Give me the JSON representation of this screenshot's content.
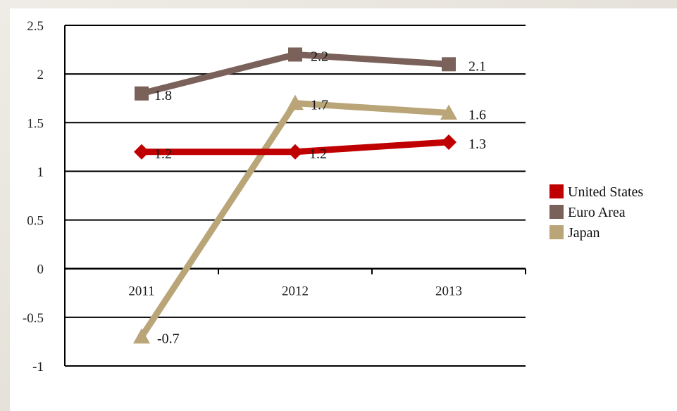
{
  "chart_data": {
    "type": "line",
    "categories": [
      "2011",
      "2012",
      "2013"
    ],
    "ylim": [
      -1,
      2.5
    ],
    "yticks": [
      "2.5",
      "2",
      "1.5",
      "1",
      "0.5",
      "0",
      "-0.5",
      "-1"
    ],
    "ytick_values": [
      2.5,
      2,
      1.5,
      1,
      0.5,
      0,
      -0.5,
      -1
    ],
    "grid": true,
    "legend_position": "right",
    "series": [
      {
        "name": "United States",
        "values": [
          1.2,
          1.2,
          1.3
        ],
        "labels": [
          "1.2",
          "1.2",
          "1.3"
        ],
        "color": "#c00000",
        "marker": "diamond"
      },
      {
        "name": "Euro Area",
        "values": [
          1.8,
          2.2,
          2.1
        ],
        "labels": [
          "1.8",
          "2.2",
          "2.1"
        ],
        "color": "#7a615a",
        "marker": "square"
      },
      {
        "name": "Japan",
        "values": [
          -0.7,
          1.7,
          1.6
        ],
        "labels": [
          "-0.7",
          "1.7",
          "1.6"
        ],
        "color": "#b9a577",
        "marker": "triangle"
      }
    ]
  }
}
